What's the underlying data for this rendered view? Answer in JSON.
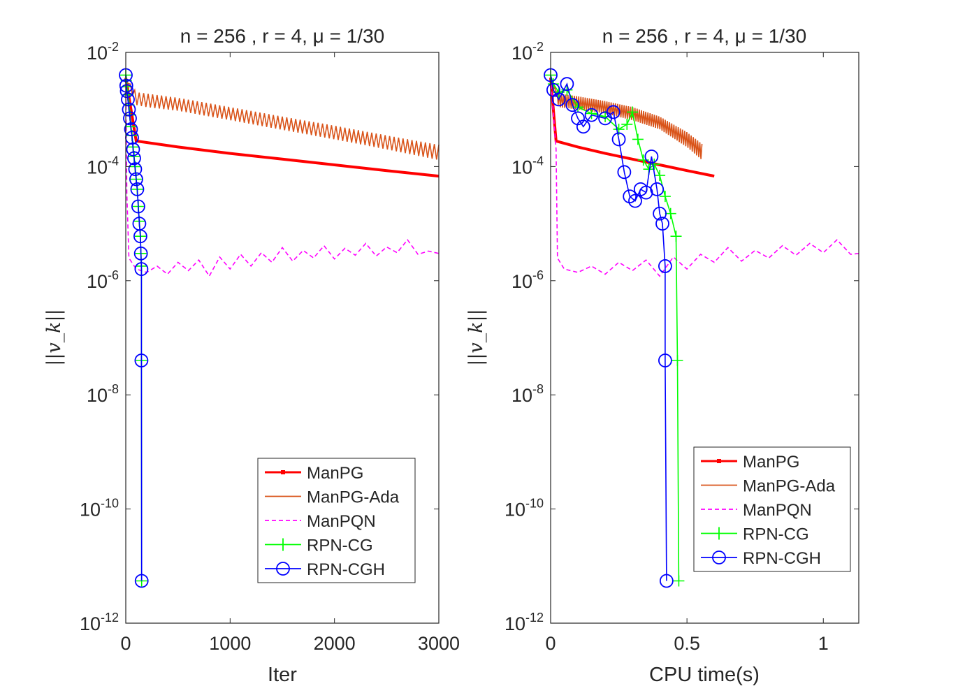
{
  "panels": [
    {
      "title": "n = 256 , r = 4, μ = 1/30",
      "xlabel": "Iter",
      "ylabel": "||v_k||",
      "xticks": [
        0,
        1000,
        2000,
        3000
      ],
      "xticklabels": [
        "0",
        "1000",
        "2000",
        "3000"
      ],
      "xlim": [
        0,
        3000
      ]
    },
    {
      "title": "n = 256 , r = 4, μ = 1/30",
      "xlabel": "CPU time(s)",
      "ylabel": "||v_k||",
      "xticks": [
        0,
        0.5,
        1
      ],
      "xticklabels": [
        "0",
        "0.5",
        "1"
      ],
      "xlim": [
        0,
        1.13
      ]
    }
  ],
  "yticks": [
    {
      "base": "10",
      "exp": "-2"
    },
    {
      "base": "10",
      "exp": "-4"
    },
    {
      "base": "10",
      "exp": "-6"
    },
    {
      "base": "10",
      "exp": "-8"
    },
    {
      "base": "10",
      "exp": "-10"
    },
    {
      "base": "10",
      "exp": "-12"
    }
  ],
  "legend": [
    {
      "label": "ManPG",
      "color": "#ff0000",
      "style": "solid-dot"
    },
    {
      "label": "ManPG-Ada",
      "color": "#d95319",
      "style": "solid"
    },
    {
      "label": "ManPQN",
      "color": "#ff00ff",
      "style": "dashed"
    },
    {
      "label": "RPN-CG",
      "color": "#00ff00",
      "style": "plus"
    },
    {
      "label": "RPN-CGH",
      "color": "#0000ff",
      "style": "circle"
    }
  ],
  "chart_data": [
    {
      "type": "line",
      "title": "n = 256 , r = 4, μ = 1/30",
      "xlabel": "Iter",
      "ylabel": "||v_k||",
      "xlim": [
        0,
        3000
      ],
      "ylim": [
        1e-12,
        0.01
      ],
      "yscale": "log",
      "grid": false,
      "legend_position": "bottom-right",
      "series": [
        {
          "name": "ManPG",
          "color": "#ff0000",
          "x": [
            0,
            100,
            500,
            1000,
            1500,
            2000,
            2500,
            3000
          ],
          "y": [
            0.0036,
            0.00028,
            0.00022,
            0.00017,
            0.000135,
            0.000107,
            8.5e-05,
            6.8e-05
          ]
        },
        {
          "name": "ManPG-Ada",
          "color": "#d95319",
          "x": [
            0,
            100,
            200,
            500,
            1000,
            1500,
            2000,
            2500,
            3000
          ],
          "y_high": [
            0.0036,
            0.002,
            0.0019,
            0.0016,
            0.0011,
            0.00075,
            0.00052,
            0.00035,
            0.00024
          ],
          "y_low": [
            0.0036,
            0.0012,
            0.0011,
            0.00095,
            0.00065,
            0.00044,
            0.0003,
            0.0002,
            0.00013
          ]
        },
        {
          "name": "ManPQN",
          "color": "#ff00ff",
          "x": [
            0,
            10,
            30,
            100,
            200,
            300,
            400,
            500,
            600,
            700,
            800,
            900,
            1000,
            1100,
            1200,
            1300,
            1400,
            1500,
            1600,
            1700,
            1800,
            1900,
            2000,
            2100,
            2200,
            2300,
            2400,
            2500,
            2600,
            2700,
            2800,
            2900,
            3000
          ],
          "y": [
            0.0036,
            3.5e-05,
            2.5e-06,
            1.6e-06,
            1.4e-06,
            1.8e-06,
            1.3e-06,
            2.1e-06,
            1.5e-06,
            2.3e-06,
            1.2e-06,
            2.6e-06,
            1.6e-06,
            2.9e-06,
            1.8e-06,
            3.1e-06,
            2.1e-06,
            3.8e-06,
            2.2e-06,
            3.4e-06,
            2.5e-06,
            4.1e-06,
            2.4e-06,
            3.7e-06,
            2.8e-06,
            4.5e-06,
            2.7e-06,
            3.9e-06,
            3.1e-06,
            5.2e-06,
            2.9e-06,
            3.3e-06,
            3e-06
          ]
        },
        {
          "name": "RPN-CG",
          "color": "#00ff00",
          "x": [
            0,
            5,
            10,
            20,
            30,
            40,
            50,
            60,
            70,
            80,
            90,
            100,
            110,
            120,
            130,
            140,
            145,
            150,
            150,
            152
          ],
          "y": [
            0.004,
            0.0032,
            0.0025,
            0.0018,
            0.0012,
            0.0008,
            0.0005,
            0.00035,
            0.00022,
            0.00015,
            0.0001,
            6e-05,
            4e-05,
            2e-05,
            1.1e-05,
            6e-06,
            3e-06,
            1.8e-06,
            4e-08,
            5.5e-12
          ]
        },
        {
          "name": "RPN-CGH",
          "color": "#0000ff",
          "x": [
            0,
            5,
            10,
            20,
            30,
            40,
            50,
            60,
            70,
            80,
            90,
            100,
            110,
            120,
            130,
            140,
            145,
            150,
            150,
            152
          ],
          "y": [
            0.004,
            0.0026,
            0.0021,
            0.0015,
            0.001,
            0.0007,
            0.00045,
            0.00032,
            0.0002,
            0.00014,
            9e-05,
            6e-05,
            4e-05,
            2e-05,
            1e-05,
            6e-06,
            3e-06,
            1.6e-06,
            4e-08,
            5.5e-12
          ]
        }
      ]
    },
    {
      "type": "line",
      "title": "n = 256 , r = 4, μ = 1/30",
      "xlabel": "CPU time(s)",
      "ylabel": "||v_k||",
      "xlim": [
        0,
        1.13
      ],
      "ylim": [
        1e-12,
        0.01
      ],
      "yscale": "log",
      "grid": false,
      "legend_position": "bottom-right",
      "series": [
        {
          "name": "ManPG",
          "color": "#ff0000",
          "x": [
            0,
            0.02,
            0.1,
            0.2,
            0.3,
            0.4,
            0.5,
            0.6
          ],
          "y": [
            0.0036,
            0.00028,
            0.00022,
            0.00017,
            0.000135,
            0.000107,
            8.5e-05,
            6.8e-05
          ]
        },
        {
          "name": "ManPG-Ada",
          "color": "#d95319",
          "x": [
            0,
            0.03,
            0.1,
            0.2,
            0.3,
            0.4,
            0.5,
            0.555
          ],
          "y_high": [
            0.0036,
            0.0019,
            0.0017,
            0.0014,
            0.0011,
            0.00075,
            0.0004,
            0.00025
          ],
          "y_low": [
            0.0036,
            0.0011,
            0.001,
            0.00085,
            0.00065,
            0.00045,
            0.00022,
            0.00013
          ]
        },
        {
          "name": "ManPQN",
          "color": "#ff00ff",
          "x": [
            0,
            0.02,
            0.025,
            0.05,
            0.1,
            0.15,
            0.2,
            0.25,
            0.3,
            0.35,
            0.4,
            0.45,
            0.5,
            0.55,
            0.6,
            0.65,
            0.7,
            0.75,
            0.8,
            0.85,
            0.9,
            0.95,
            1.0,
            1.05,
            1.1,
            1.13
          ],
          "y": [
            0.0036,
            0.0002,
            2.5e-06,
            1.6e-06,
            1.4e-06,
            1.8e-06,
            1.3e-06,
            2.1e-06,
            1.5e-06,
            2.3e-06,
            1.2e-06,
            2.6e-06,
            1.6e-06,
            2.9e-06,
            2.1e-06,
            3.8e-06,
            2.2e-06,
            3.4e-06,
            2.5e-06,
            4.1e-06,
            2.8e-06,
            4.5e-06,
            3.1e-06,
            5.2e-06,
            2.9e-06,
            3e-06
          ]
        },
        {
          "name": "RPN-CG",
          "color": "#00ff00",
          "x": [
            0,
            0.01,
            0.03,
            0.06,
            0.1,
            0.15,
            0.2,
            0.25,
            0.28,
            0.3,
            0.32,
            0.34,
            0.36,
            0.38,
            0.4,
            0.42,
            0.44,
            0.46,
            0.465,
            0.47
          ],
          "y": [
            0.004,
            0.0028,
            0.002,
            0.0022,
            0.0011,
            0.00085,
            0.00075,
            0.00045,
            0.00055,
            0.0009,
            0.0003,
            0.00013,
            9e-05,
            0.00011,
            7e-05,
            3e-05,
            1.5e-05,
            6e-06,
            4e-08,
            5.5e-12
          ]
        },
        {
          "name": "RPN-CGH",
          "color": "#0000ff",
          "x": [
            0,
            0.01,
            0.03,
            0.06,
            0.08,
            0.1,
            0.12,
            0.15,
            0.2,
            0.23,
            0.25,
            0.27,
            0.29,
            0.31,
            0.33,
            0.35,
            0.37,
            0.39,
            0.4,
            0.41,
            0.42,
            0.42,
            0.425
          ],
          "y": [
            0.004,
            0.0022,
            0.0015,
            0.0028,
            0.0012,
            0.0007,
            0.0005,
            0.0008,
            0.0007,
            0.0009,
            0.0003,
            8e-05,
            3e-05,
            2.5e-05,
            4e-05,
            3.5e-05,
            0.00015,
            4e-05,
            1.5e-05,
            1e-05,
            1.8e-06,
            4e-08,
            5.5e-12
          ]
        }
      ]
    }
  ]
}
